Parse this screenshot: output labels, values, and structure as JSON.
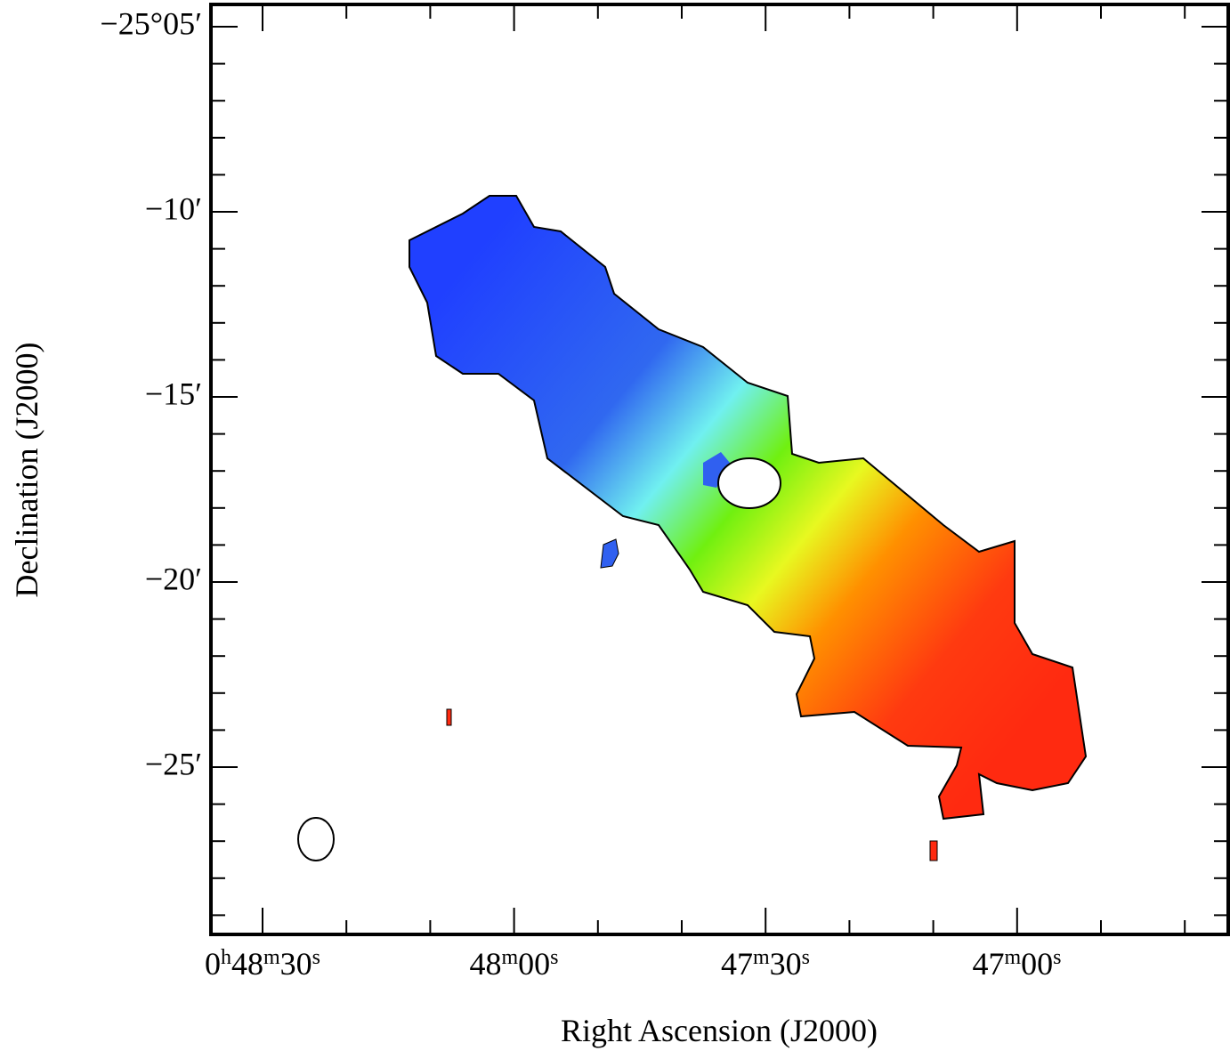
{
  "figure": {
    "x_axis": {
      "label": "Right Ascension (J2000)",
      "ticks": [
        [
          "0",
          "h",
          "48",
          "m",
          "30",
          "s"
        ],
        [
          "48",
          "m",
          "00",
          "s"
        ],
        [
          "47",
          "m",
          "30",
          "s"
        ],
        [
          "47",
          "m",
          "00",
          "s"
        ]
      ]
    },
    "y_axis": {
      "label": "Declination (J2000)",
      "ticks": [
        "−25°05′",
        "−10′",
        "−15′",
        "−20′",
        "−25′"
      ]
    }
  }
}
